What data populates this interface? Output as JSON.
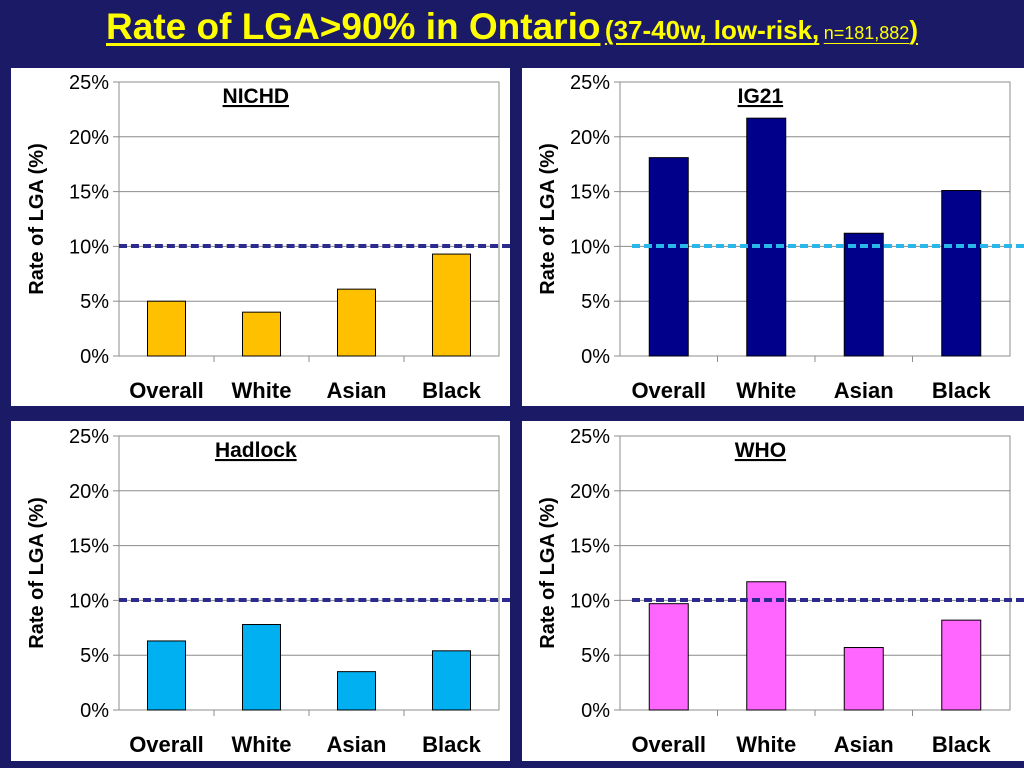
{
  "slide": {
    "title_main": "Rate of LGA>90% in Ontario",
    "title_paren_open": "(37-40w, low-risk,",
    "title_n": "n=181,882",
    "title_paren_close": ")"
  },
  "colors": {
    "background": "#1a1a66",
    "title": "#ffff00",
    "reference_dark": "#2b2b8f",
    "reference_light": "#29b6e8"
  },
  "chart_data": [
    {
      "type": "bar",
      "title": "NICHD",
      "categories": [
        "Overall",
        "White",
        "Asian",
        "Black"
      ],
      "values": [
        5.0,
        4.0,
        6.1,
        9.3
      ],
      "ylabel": "Rate of LGA (%)",
      "ylim": [
        0,
        25
      ],
      "yticks": [
        "0%",
        "5%",
        "10%",
        "15%",
        "20%",
        "25%"
      ],
      "bar_color": "#ffc000",
      "reference_value": 10,
      "reference_color": "#2b2b8f"
    },
    {
      "type": "bar",
      "title": "IG21",
      "categories": [
        "Overall",
        "White",
        "Asian",
        "Black"
      ],
      "values": [
        18.1,
        21.7,
        11.2,
        15.1
      ],
      "ylabel": "Rate of LGA (%)",
      "ylim": [
        0,
        25
      ],
      "yticks": [
        "0%",
        "5%",
        "10%",
        "15%",
        "20%",
        "25%"
      ],
      "bar_color": "#00008b",
      "reference_value": 10,
      "reference_color": "#29b6e8"
    },
    {
      "type": "bar",
      "title": "Hadlock",
      "categories": [
        "Overall",
        "White",
        "Asian",
        "Black"
      ],
      "values": [
        6.3,
        7.8,
        3.5,
        5.4
      ],
      "ylabel": "Rate of LGA (%)",
      "ylim": [
        0,
        25
      ],
      "yticks": [
        "0%",
        "5%",
        "10%",
        "15%",
        "20%",
        "25%"
      ],
      "bar_color": "#00b0f0",
      "reference_value": 10,
      "reference_color": "#2b2b8f"
    },
    {
      "type": "bar",
      "title": "WHO",
      "categories": [
        "Overall",
        "White",
        "Asian",
        "Black"
      ],
      "values": [
        9.7,
        11.7,
        5.7,
        8.2
      ],
      "ylabel": "Rate of LGA (%)",
      "ylim": [
        0,
        25
      ],
      "yticks": [
        "0%",
        "5%",
        "10%",
        "15%",
        "20%",
        "25%"
      ],
      "bar_color": "#ff66ff",
      "reference_value": 10,
      "reference_color": "#2b2b8f"
    }
  ]
}
